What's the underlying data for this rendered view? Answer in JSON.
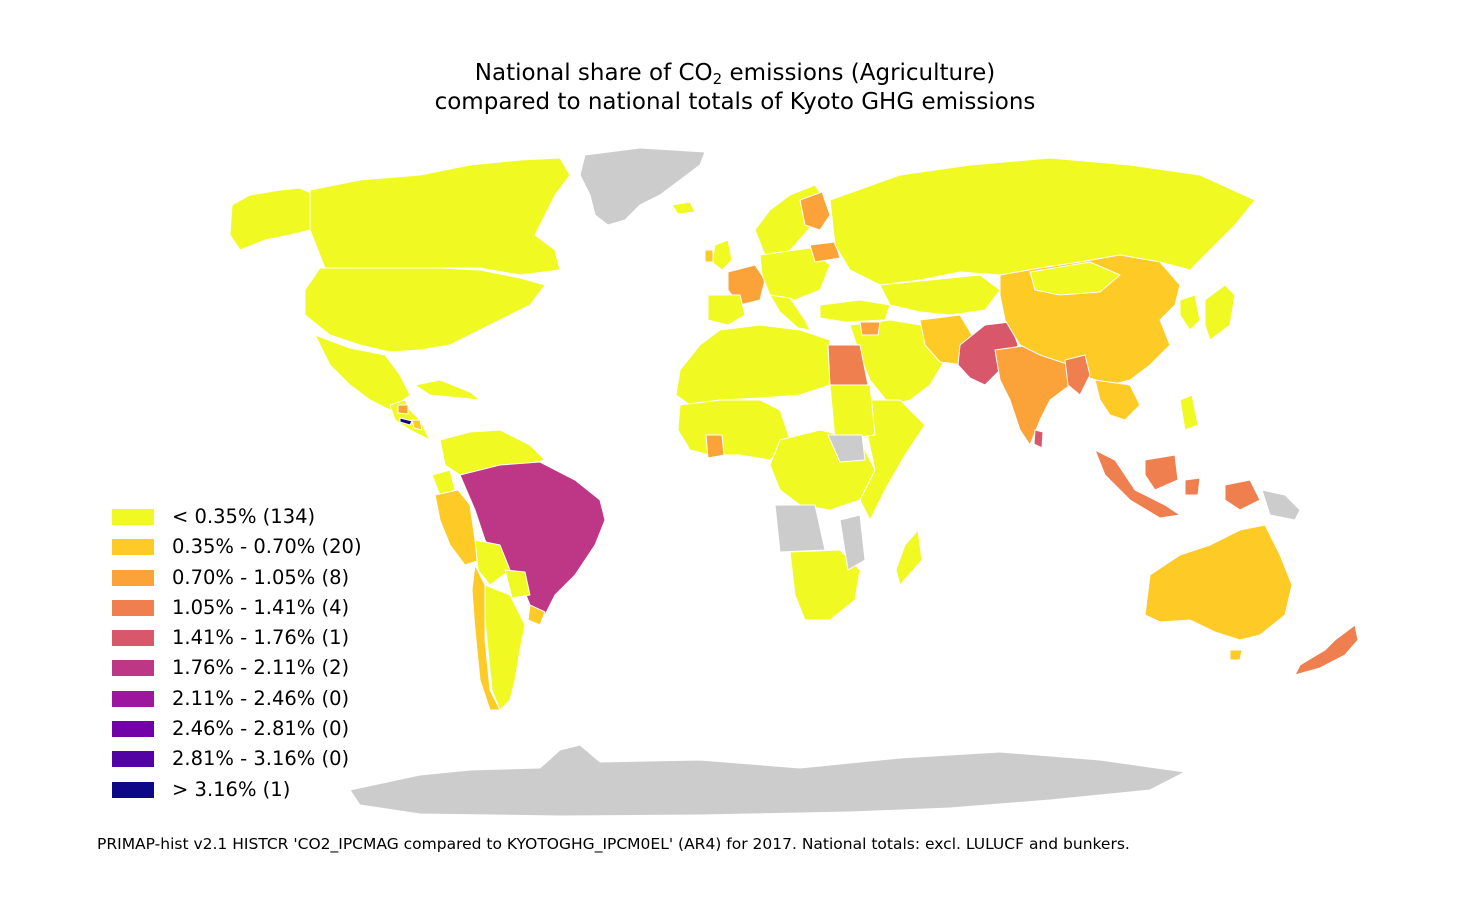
{
  "title": {
    "line1_prefix": "National share of CO",
    "line1_sub": "2",
    "line1_suffix": " emissions (Agriculture)",
    "line2": "compared to national totals of Kyoto GHG emissions"
  },
  "legend": [
    {
      "label": "< 0.35% (134)",
      "color": "#f0f921"
    },
    {
      "label": "0.35% - 0.70% (20)",
      "color": "#fdca26"
    },
    {
      "label": "0.70% - 1.05% (8)",
      "color": "#fba238"
    },
    {
      "label": "1.05% - 1.41% (4)",
      "color": "#f07f4f"
    },
    {
      "label": "1.41% - 1.76% (1)",
      "color": "#d8576b"
    },
    {
      "label": "1.76% - 2.11% (2)",
      "color": "#bd3786"
    },
    {
      "label": "2.11% - 2.46% (0)",
      "color": "#9c179e"
    },
    {
      "label": "2.46% - 2.81% (0)",
      "color": "#7201a8"
    },
    {
      "label": "2.81% - 3.16% (0)",
      "color": "#5302a3"
    },
    {
      "label": "> 3.16% (1)",
      "color": "#0d0887"
    }
  ],
  "no_data_color": "#cccccc",
  "footer": "PRIMAP-hist v2.1 HISTCR 'CO2_IPCMAG compared to KYOTOGHG_IPCM0EL' (AR4) for 2017. National totals: excl. LULUCF and bunkers."
}
